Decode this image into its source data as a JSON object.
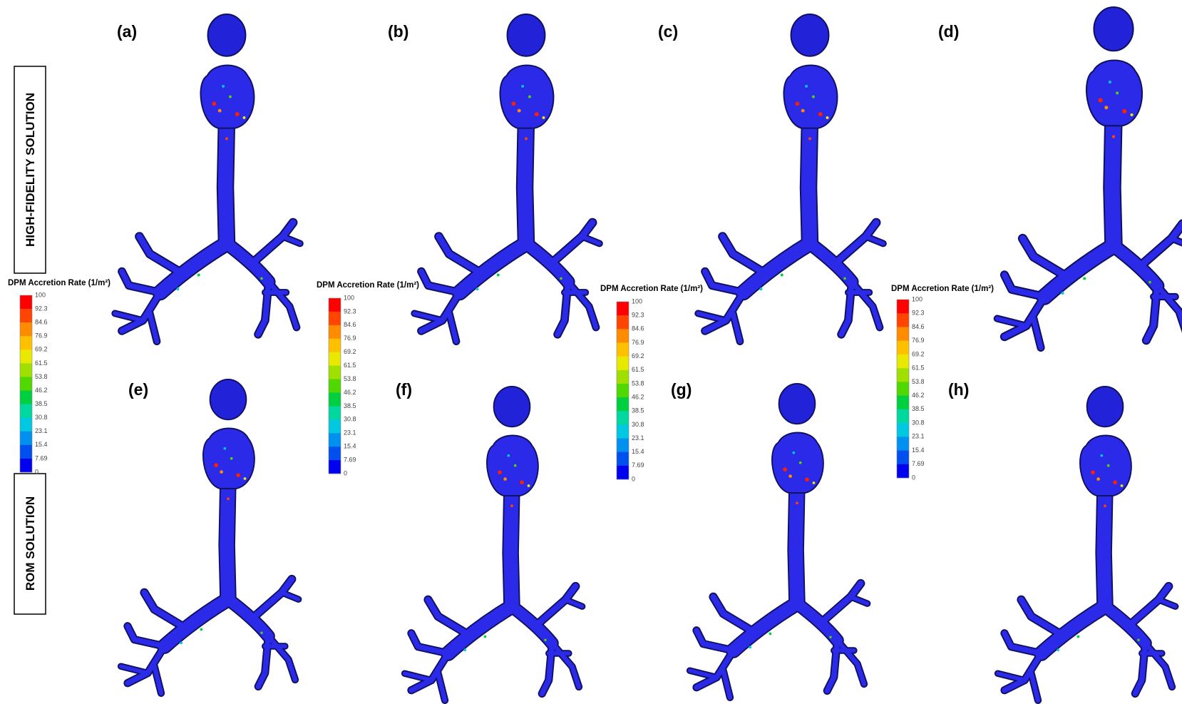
{
  "row_labels": [
    "HIGH-FIDELITY SOLUTION",
    "ROM SOLUTION"
  ],
  "panels": [
    "(a)",
    "(b)",
    "(c)",
    "(d)",
    "(e)",
    "(f)",
    "(g)",
    "(h)"
  ],
  "colorbar_colors": [
    "#ff0000",
    "#ff4500",
    "#ff8c00",
    "#ffc000",
    "#e8e800",
    "#a0e000",
    "#50d800",
    "#00d040",
    "#00d8a0",
    "#00c8e0",
    "#0090f0",
    "#0050f0",
    "#0000f0"
  ],
  "colorbars": [
    {
      "title": "DPM Accretion Rate (1/m²)",
      "ticks": [
        "100",
        "92.3",
        "84.6",
        "76.9",
        "69.2",
        "61.5",
        "53.8",
        "46.2",
        "38.5",
        "30.8",
        "23.1",
        "15.4",
        "7.69",
        "0"
      ]
    },
    {
      "title": "DPM Accretion Rate (1/m²)",
      "ticks": [
        "100",
        "92.3",
        "84.6",
        "76.9",
        "69.2",
        "61.5",
        "53.8",
        "46.2",
        "38.5",
        "30.8",
        "23.1",
        "15.4",
        "7.69",
        "0"
      ]
    },
    {
      "title": "DPM Accretion Rate (1/m²)",
      "ticks": [
        "100",
        "92.3",
        "84.6",
        "76.9",
        "69.2",
        "61.5",
        "53.8",
        "46.2",
        "38.5",
        "30.8",
        "23.1",
        "15.4",
        "7.69",
        "0"
      ]
    },
    {
      "title": "DPM Accretion Rate (1/m²)",
      "ticks": [
        "100",
        "92.3",
        "84.6",
        "76.9",
        "69.2",
        "61.5",
        "53.8",
        "46.2",
        "38.5",
        "30.8",
        "23.1",
        "15.4",
        "7.69",
        "0"
      ]
    }
  ]
}
